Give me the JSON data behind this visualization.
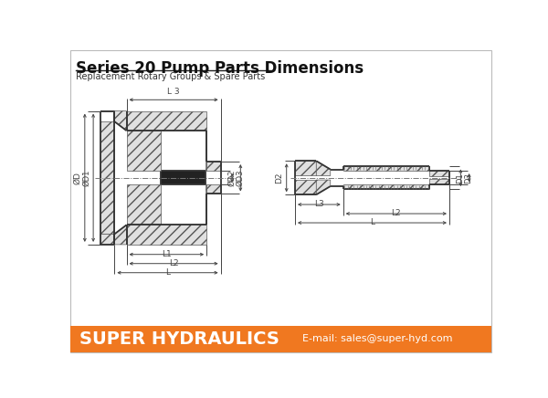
{
  "title": "Series 20 Pump Parts Dimensions",
  "subtitle": "Replacement Rotary Groups & Spare Parts",
  "footer_bg": "#F07820",
  "footer_text": "SUPER HYDRAULICS",
  "footer_email": "E-mail: sales@super-hyd.com",
  "bg_color": "#FFFFFF",
  "line_color": "#333333",
  "dim_color": "#444444",
  "hatch_fc": "#E0E0E0",
  "hatch_ec": "#555555"
}
